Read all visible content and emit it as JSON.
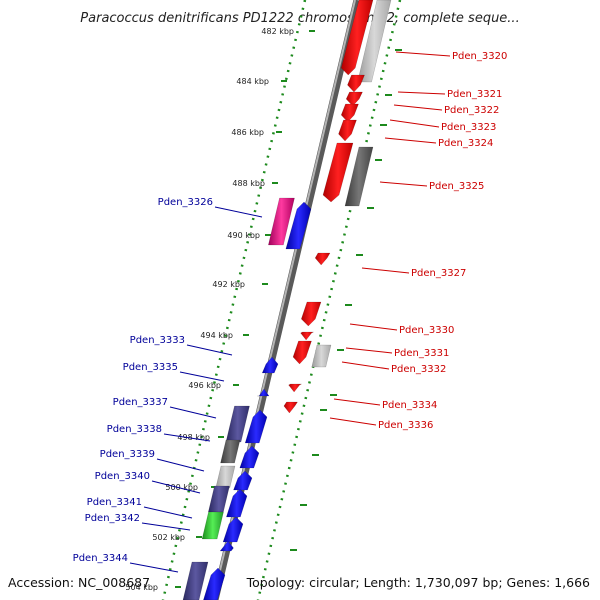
{
  "title": "Paracoccus denitrificans PD1222 chromosome 2, complete seque...",
  "footer": {
    "accession": "Accession: NC_008687",
    "summary": "Topology: circular; Length: 1,730,097 bp; Genes: 1,666"
  },
  "colors": {
    "backbone": "#8c8c8c",
    "tick": "#1d8a1d",
    "forward_label": "#cc0000",
    "reverse_label": "#000099",
    "forward_gene": "#ff0000",
    "reverse_gene": "#0000ff",
    "gray_light": "#c8c8c8",
    "gray_dark": "#666666",
    "purple": "#4d4a8c",
    "magenta": "#e6007e",
    "green": "#33cc33"
  },
  "ticks": [
    "482 kbp",
    "484 kbp",
    "486 kbp",
    "488 kbp",
    "490 kbp",
    "492 kbp",
    "494 kbp",
    "496 kbp",
    "498 kbp",
    "500 kbp",
    "502 kbp",
    "504 kbp"
  ],
  "forward_labels": [
    "Pden_3320",
    "Pden_3321",
    "Pden_3322",
    "Pden_3323",
    "Pden_3324",
    "Pden_3325",
    "Pden_3327",
    "Pden_3330",
    "Pden_3331",
    "Pden_3332",
    "Pden_3334",
    "Pden_3336"
  ],
  "reverse_labels": [
    "Pden_3326",
    "Pden_3333",
    "Pden_3335",
    "Pden_3337",
    "Pden_3338",
    "Pden_3339",
    "Pden_3340",
    "Pden_3341",
    "Pden_3342",
    "Pden_3344"
  ]
}
